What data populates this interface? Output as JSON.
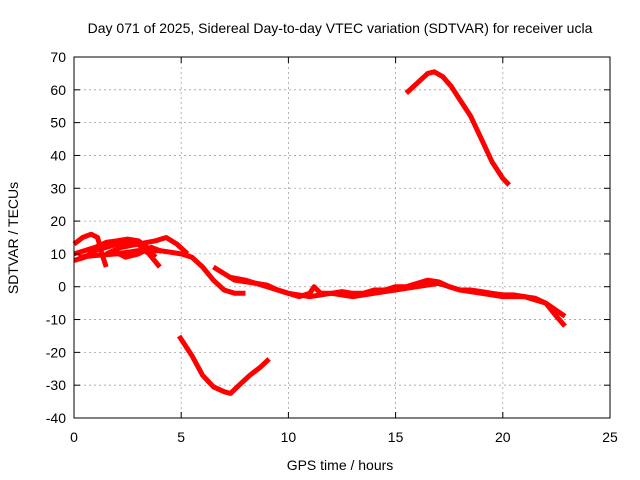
{
  "chart_data": {
    "type": "line",
    "title": "Day 071 of 2025, Sidereal Day-to-day VTEC variation (SDTVAR) for receiver ucla",
    "xlabel": "GPS time / hours",
    "ylabel": "SDTVAR / TECUs",
    "xlim": [
      0,
      25
    ],
    "ylim": [
      -40,
      70
    ],
    "xticks": [
      0,
      5,
      10,
      15,
      20,
      25
    ],
    "yticks": [
      -40,
      -30,
      -20,
      -10,
      0,
      10,
      20,
      30,
      40,
      50,
      60,
      70
    ],
    "grid": true,
    "line_color": "#ff0000",
    "series": [
      {
        "name": "track-a",
        "x": [
          0.0,
          0.4,
          0.8,
          1.1,
          1.3,
          1.5
        ],
        "y": [
          13,
          15,
          16,
          15,
          10,
          6
        ]
      },
      {
        "name": "track-b",
        "x": [
          0.0,
          0.5,
          1.0,
          1.5,
          2.0,
          2.5,
          3.0,
          3.5,
          4.0
        ],
        "y": [
          8,
          9,
          11,
          12,
          13,
          13.5,
          13,
          10,
          6
        ]
      },
      {
        "name": "track-c",
        "x": [
          0.0,
          0.5,
          1.0,
          1.5,
          2.0,
          2.5,
          3.0,
          3.4,
          3.8
        ],
        "y": [
          10,
          11,
          12,
          13.5,
          14,
          14.5,
          14,
          12,
          9
        ]
      },
      {
        "name": "track-d",
        "x": [
          0.2,
          1.0,
          2.0,
          3.0,
          4.0,
          5.0,
          5.5,
          6.0,
          6.5,
          7.0,
          7.5,
          8.0
        ],
        "y": [
          9,
          9.5,
          10,
          11,
          11,
          10,
          9,
          6,
          2,
          -1,
          -2,
          -2
        ]
      },
      {
        "name": "track-e",
        "x": [
          1.5,
          2.2,
          3.0,
          3.8,
          4.3,
          4.8,
          5.3
        ],
        "y": [
          10,
          12,
          13,
          14,
          15,
          13,
          10
        ]
      },
      {
        "name": "track-f",
        "x": [
          1.8,
          2.4,
          3.0,
          3.6,
          4.0
        ],
        "y": [
          11,
          9,
          10,
          12,
          11
        ]
      },
      {
        "name": "track-g",
        "x": [
          4.9,
          5.5,
          6.0,
          6.5,
          7.0,
          7.3,
          7.7,
          8.2,
          8.7,
          9.1
        ],
        "y": [
          -15,
          -21,
          -27,
          -30.5,
          -32,
          -32.5,
          -30,
          -27,
          -24.5,
          -22
        ]
      },
      {
        "name": "track-h",
        "x": [
          6.5,
          7.0,
          7.5,
          8.0,
          8.5,
          9.0,
          9.5,
          10.0,
          10.5,
          11.0,
          11.2,
          11.5,
          12.0,
          12.5,
          13.0,
          13.5,
          14.0,
          14.5,
          15.0,
          15.5,
          16.0,
          16.5,
          17.0,
          17.5,
          18.0,
          18.5,
          19.0,
          19.5,
          20.0,
          20.5,
          21.0,
          21.5,
          22.0,
          22.5,
          22.9
        ],
        "y": [
          6,
          4,
          2,
          1.5,
          1,
          0.5,
          -1,
          -2,
          -3,
          -2,
          0,
          -2,
          -2,
          -1.5,
          -2,
          -2,
          -1,
          -1,
          0,
          0,
          1,
          2,
          1.5,
          0,
          -1,
          -1,
          -1.5,
          -2,
          -2.5,
          -2.5,
          -3,
          -3.5,
          -5,
          -9,
          -12
        ]
      },
      {
        "name": "track-i",
        "x": [
          7.2,
          8.0,
          9.0,
          10.0,
          11.0,
          12.0,
          13.0,
          14.0,
          15.0,
          16.0,
          17.0,
          18.0,
          19.0,
          20.0,
          21.0,
          22.0,
          22.9
        ],
        "y": [
          3,
          2,
          0,
          -2,
          -3,
          -2,
          -3,
          -2,
          -1,
          0,
          1,
          -1,
          -2,
          -3,
          -3,
          -5,
          -9
        ]
      },
      {
        "name": "track-j",
        "x": [
          15.5,
          16.0,
          16.5,
          16.8,
          17.2,
          17.6,
          18.0,
          18.5,
          19.0,
          19.5,
          20.0,
          20.3
        ],
        "y": [
          59,
          62,
          65,
          65.5,
          64,
          61,
          57,
          52,
          45,
          38,
          33,
          31
        ]
      }
    ]
  }
}
